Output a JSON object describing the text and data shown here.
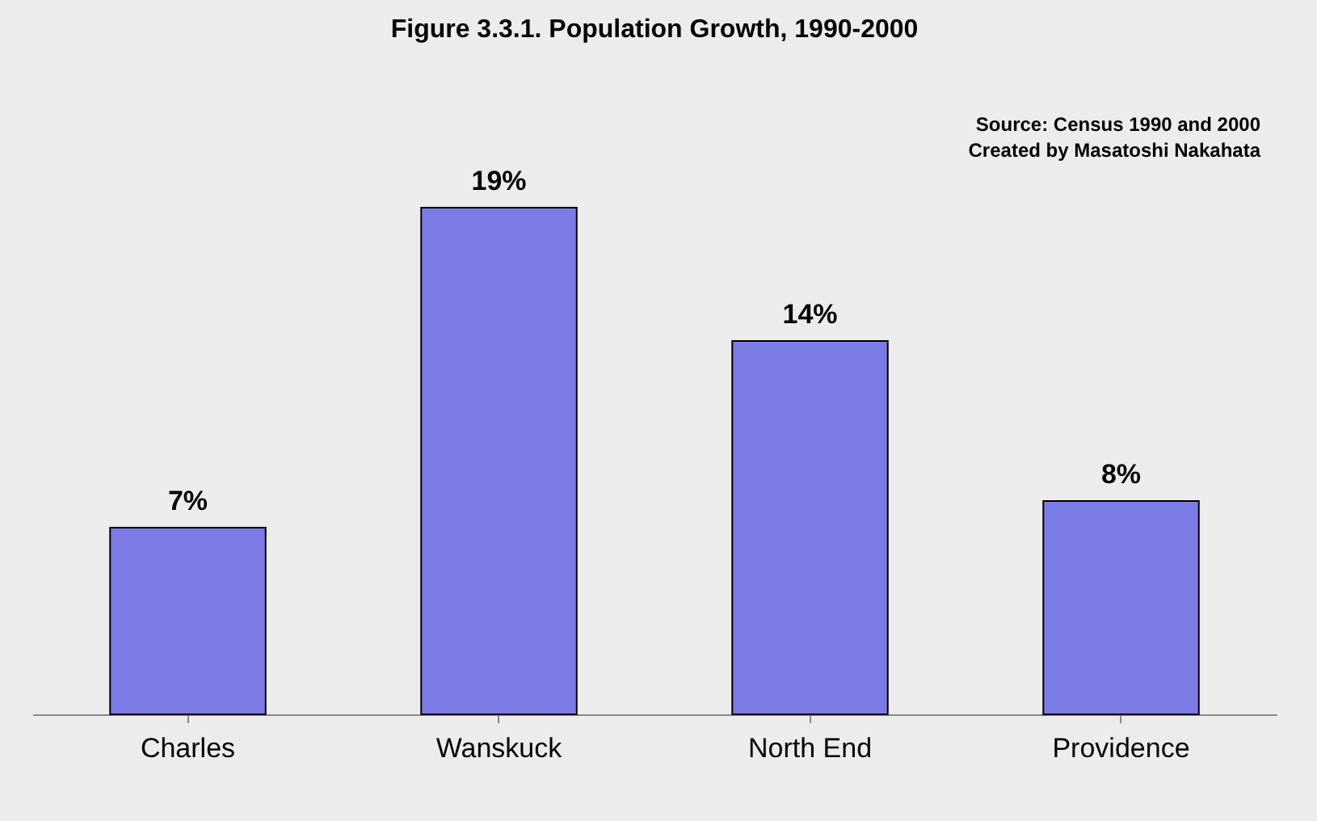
{
  "chart_data": {
    "type": "bar",
    "title": "Figure 3.3.1. Population Growth, 1990-2000",
    "categories": [
      "Charles",
      "Wanskuck",
      "North End",
      "Providence"
    ],
    "values": [
      7,
      19,
      14,
      8
    ],
    "value_labels": [
      "7%",
      "19%",
      "14%",
      "8%"
    ],
    "color": "#7b7be6",
    "annotations": [
      "Source: Census 1990 and 2000",
      "Created by Masatoshi Nakahata"
    ]
  }
}
